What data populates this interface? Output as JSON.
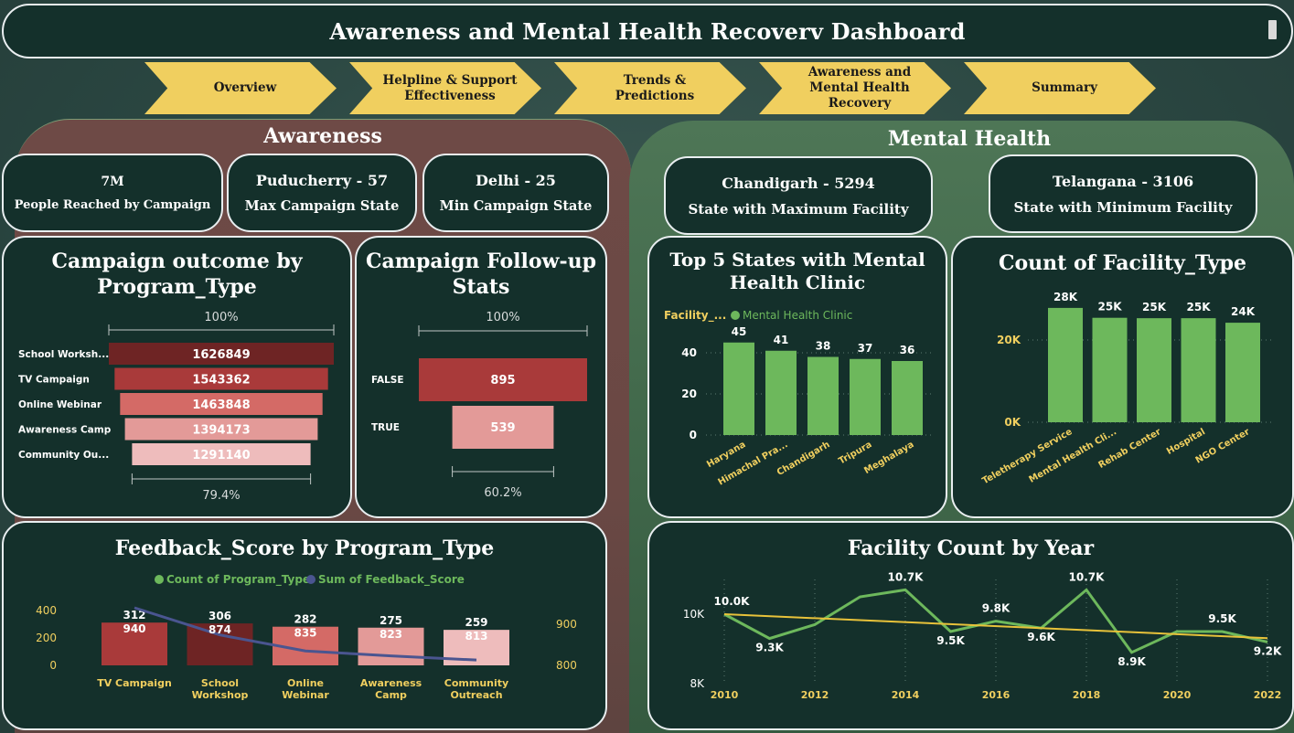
{
  "header": {
    "title": "Awareness and Mental Health Recoverv Dashboard"
  },
  "nav": [
    {
      "label": "Overview"
    },
    {
      "label": "Helpline & Support Effectiveness"
    },
    {
      "label": "Trends & Predictions"
    },
    {
      "label": "Awareness and Mental Health Recovery"
    },
    {
      "label": "Summary"
    }
  ],
  "awareness": {
    "title": "Awareness",
    "kpis": [
      {
        "value": "7M",
        "label": "People Reached by Campaign"
      },
      {
        "value": "Puducherry - 57",
        "label": "Max Campaign State"
      },
      {
        "value": "Delhi - 25",
        "label": "Min Campaign State"
      }
    ]
  },
  "mental_health": {
    "title": "Mental Health",
    "kpis": [
      {
        "value": "Chandigarh - 5294",
        "label": "State with Maximum Facility"
      },
      {
        "value": "Telangana - 3106",
        "label": "State with Minimum Facility"
      }
    ]
  },
  "colors": {
    "accent_yellow": "#f0cf5f",
    "green": "#6db85c",
    "maroon": "#7a2a2a",
    "line_blue": "#4a5590",
    "trend_yellow": "#e8c23a"
  },
  "chart_data": [
    {
      "id": "campaign-outcome",
      "type": "bar",
      "title": "Campaign outcome by Program_Type",
      "categories": [
        "School Worksh...",
        "TV Campaign",
        "Online Webinar",
        "Awareness Camp",
        "Community Ou..."
      ],
      "values": [
        1626849,
        1543362,
        1463848,
        1394173,
        1291140
      ],
      "values_labels": [
        "1626849",
        "1543362",
        "1463848",
        "1394173",
        "1291140"
      ],
      "top_pct": "100%",
      "bottom_pct": "79.4%"
    },
    {
      "id": "followup",
      "type": "bar",
      "title": "Campaign Follow-up Stats",
      "categories": [
        "FALSE",
        "TRUE"
      ],
      "values": [
        895,
        539
      ],
      "values_labels": [
        "895",
        "539"
      ],
      "top_pct": "100%",
      "bottom_pct": "60.2%"
    },
    {
      "id": "top5-states",
      "type": "bar",
      "title": "Top 5 States with Mental Health Clinic",
      "legend_label": "Facility_...",
      "series": [
        {
          "name": "Mental Health Clinic",
          "values": [
            45,
            41,
            38,
            37,
            36
          ]
        }
      ],
      "categories": [
        "Haryana",
        "Himachal Pra...",
        "Chandigarh",
        "Tripura",
        "Meghalaya"
      ],
      "values_labels": [
        "45",
        "41",
        "38",
        "37",
        "36"
      ],
      "yticks": [
        "0",
        "20",
        "40"
      ],
      "ylim": [
        0,
        50
      ]
    },
    {
      "id": "facility-type",
      "type": "bar",
      "title": "Count of Facility_Type",
      "categories": [
        "Teletherapy Service",
        "Mental Health Cli...",
        "Rehab Center",
        "Hospital",
        "NGO Center"
      ],
      "values": [
        27800,
        25400,
        25300,
        25300,
        24200
      ],
      "values_labels": [
        "28K",
        "25K",
        "25K",
        "25K",
        "24K"
      ],
      "yticks": [
        "0K",
        "20K"
      ],
      "ylim": [
        0,
        30000
      ]
    },
    {
      "id": "feedback",
      "type": "bar",
      "title": "Feedback_Score by Program_Type",
      "categories": [
        "TV Campaign",
        "School Workshop",
        "Online Webinar",
        "Awareness Camp",
        "Community Outreach"
      ],
      "series": [
        {
          "name": "Count of Program_Type",
          "values": [
            312,
            306,
            282,
            275,
            259
          ]
        },
        {
          "name": "Sum of Feedback_Score",
          "values": [
            940,
            874,
            835,
            823,
            813
          ]
        }
      ],
      "count_labels": [
        "312",
        "306",
        "282",
        "275",
        "259"
      ],
      "sum_labels": [
        "940",
        "874",
        "835",
        "823",
        "813"
      ],
      "yticks_left": [
        "0",
        "200",
        "400"
      ],
      "yticks_right": [
        "800",
        "900"
      ]
    },
    {
      "id": "facility-year",
      "type": "line",
      "title": "Facility Count by Year",
      "x": [
        2010,
        2011,
        2012,
        2013,
        2014,
        2015,
        2016,
        2017,
        2018,
        2019,
        2020,
        2021,
        2022
      ],
      "values": [
        10000,
        9300,
        9700,
        10500,
        10700,
        9500,
        9800,
        9600,
        10700,
        8900,
        9500,
        9500,
        9200
      ],
      "point_labels": [
        "10.0K",
        "9.3K",
        "",
        "",
        "10.7K",
        "9.5K",
        "9.8K",
        "9.6K",
        "10.7K",
        "8.9K",
        "",
        "9.5K",
        "9.2K"
      ],
      "xticks": [
        "2010",
        "2012",
        "2014",
        "2016",
        "2018",
        "2020",
        "2022"
      ],
      "yticks": [
        "8K",
        "10K"
      ],
      "ylim": [
        8000,
        11000
      ]
    }
  ]
}
